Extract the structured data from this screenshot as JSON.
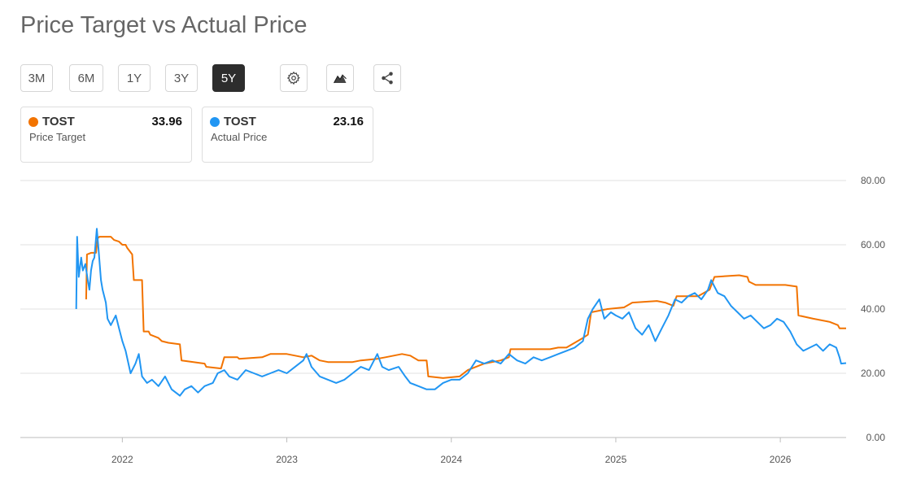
{
  "title": "Price Target vs Actual Price",
  "ranges": [
    {
      "label": "3M",
      "active": false
    },
    {
      "label": "6M",
      "active": false
    },
    {
      "label": "1Y",
      "active": false
    },
    {
      "label": "3Y",
      "active": false
    },
    {
      "label": "5Y",
      "active": true
    }
  ],
  "tools": [
    {
      "name": "settings-button",
      "icon": "gear-icon"
    },
    {
      "name": "chart-type-button",
      "icon": "mountain-chart-icon"
    },
    {
      "name": "share-button",
      "icon": "share-icon"
    }
  ],
  "legend": [
    {
      "ticker": "TOST",
      "value": "33.96",
      "label": "Price Target",
      "color": "#f27300"
    },
    {
      "ticker": "TOST",
      "value": "23.16",
      "label": "Actual Price",
      "color": "#2196f3"
    }
  ],
  "chart_data": {
    "type": "line",
    "title": "Price Target vs Actual Price",
    "xlabel": "",
    "ylabel": "",
    "ylim": [
      0,
      80
    ],
    "y_ticks": [
      "0.00",
      "20.00",
      "40.00",
      "60.00",
      "80.00"
    ],
    "y_tick_values": [
      0,
      20,
      40,
      60,
      80
    ],
    "x_ticks": [
      "2022",
      "2023",
      "2024",
      "2025",
      "2026"
    ],
    "x_tick_values": [
      2022.0,
      2023.0,
      2024.0,
      2025.0,
      2026.0
    ],
    "xlim": [
      2021.38,
      2026.4
    ],
    "grid": "horizontal",
    "axis_position": "right",
    "series": [
      {
        "name": "Price Target",
        "color": "#f27300",
        "points": [
          [
            2021.78,
            43
          ],
          [
            2021.785,
            57
          ],
          [
            2021.81,
            57.5
          ],
          [
            2021.84,
            57.5
          ],
          [
            2021.85,
            62
          ],
          [
            2021.86,
            62.5
          ],
          [
            2021.93,
            62.5
          ],
          [
            2021.95,
            61.5
          ],
          [
            2021.98,
            61
          ],
          [
            2022.0,
            60
          ],
          [
            2022.02,
            60
          ],
          [
            2022.03,
            59
          ],
          [
            2022.06,
            57
          ],
          [
            2022.07,
            49
          ],
          [
            2022.12,
            49
          ],
          [
            2022.13,
            33
          ],
          [
            2022.16,
            33
          ],
          [
            2022.17,
            32
          ],
          [
            2022.22,
            31
          ],
          [
            2022.24,
            30
          ],
          [
            2022.28,
            29.5
          ],
          [
            2022.35,
            29
          ],
          [
            2022.36,
            24
          ],
          [
            2022.5,
            23
          ],
          [
            2022.51,
            22
          ],
          [
            2022.6,
            21.5
          ],
          [
            2022.62,
            25
          ],
          [
            2022.7,
            25
          ],
          [
            2022.71,
            24.5
          ],
          [
            2022.85,
            25
          ],
          [
            2022.9,
            26
          ],
          [
            2023.0,
            26
          ],
          [
            2023.05,
            25.5
          ],
          [
            2023.1,
            25
          ],
          [
            2023.15,
            25.5
          ],
          [
            2023.2,
            24
          ],
          [
            2023.25,
            23.5
          ],
          [
            2023.4,
            23.5
          ],
          [
            2023.45,
            24
          ],
          [
            2023.55,
            24.5
          ],
          [
            2023.6,
            25
          ],
          [
            2023.7,
            26
          ],
          [
            2023.75,
            25.5
          ],
          [
            2023.8,
            24
          ],
          [
            2023.85,
            24
          ],
          [
            2023.86,
            19
          ],
          [
            2023.95,
            18.5
          ],
          [
            2024.05,
            19
          ],
          [
            2024.1,
            21
          ],
          [
            2024.2,
            23
          ],
          [
            2024.3,
            24
          ],
          [
            2024.35,
            25
          ],
          [
            2024.36,
            27.5
          ],
          [
            2024.6,
            27.5
          ],
          [
            2024.65,
            28
          ],
          [
            2024.7,
            28
          ],
          [
            2024.8,
            31
          ],
          [
            2024.83,
            32
          ],
          [
            2024.85,
            39
          ],
          [
            2024.9,
            39.5
          ],
          [
            2024.95,
            40
          ],
          [
            2025.05,
            40.5
          ],
          [
            2025.1,
            42
          ],
          [
            2025.25,
            42.5
          ],
          [
            2025.3,
            42
          ],
          [
            2025.35,
            41
          ],
          [
            2025.37,
            44
          ],
          [
            2025.5,
            44
          ],
          [
            2025.57,
            46
          ],
          [
            2025.6,
            50
          ],
          [
            2025.75,
            50.5
          ],
          [
            2025.8,
            50
          ],
          [
            2025.81,
            48.5
          ],
          [
            2025.85,
            47.5
          ],
          [
            2025.95,
            47.5
          ],
          [
            2026.03,
            47.5
          ],
          [
            2026.1,
            47
          ],
          [
            2026.11,
            38
          ],
          [
            2026.2,
            37
          ],
          [
            2026.3,
            36
          ],
          [
            2026.35,
            35
          ],
          [
            2026.36,
            34
          ],
          [
            2026.4,
            34
          ]
        ]
      },
      {
        "name": "Actual Price",
        "color": "#2196f3",
        "points": [
          [
            2021.72,
            40
          ],
          [
            2021.725,
            62.5
          ],
          [
            2021.735,
            50
          ],
          [
            2021.75,
            56
          ],
          [
            2021.76,
            52
          ],
          [
            2021.775,
            54
          ],
          [
            2021.79,
            49
          ],
          [
            2021.8,
            46
          ],
          [
            2021.81,
            52
          ],
          [
            2021.82,
            55
          ],
          [
            2021.83,
            56
          ],
          [
            2021.845,
            65
          ],
          [
            2021.855,
            59
          ],
          [
            2021.87,
            49
          ],
          [
            2021.88,
            46
          ],
          [
            2021.9,
            42
          ],
          [
            2021.91,
            37
          ],
          [
            2021.93,
            35
          ],
          [
            2021.96,
            38
          ],
          [
            2021.98,
            34
          ],
          [
            2022.0,
            30
          ],
          [
            2022.02,
            27
          ],
          [
            2022.05,
            20
          ],
          [
            2022.08,
            23
          ],
          [
            2022.1,
            26
          ],
          [
            2022.12,
            19
          ],
          [
            2022.15,
            17
          ],
          [
            2022.18,
            18
          ],
          [
            2022.22,
            16
          ],
          [
            2022.26,
            19
          ],
          [
            2022.3,
            15
          ],
          [
            2022.35,
            13
          ],
          [
            2022.38,
            15
          ],
          [
            2022.42,
            16
          ],
          [
            2022.46,
            14
          ],
          [
            2022.5,
            16
          ],
          [
            2022.55,
            17
          ],
          [
            2022.58,
            20
          ],
          [
            2022.62,
            21
          ],
          [
            2022.65,
            19
          ],
          [
            2022.7,
            18
          ],
          [
            2022.75,
            21
          ],
          [
            2022.8,
            20
          ],
          [
            2022.85,
            19
          ],
          [
            2022.9,
            20
          ],
          [
            2022.95,
            21
          ],
          [
            2023.0,
            20
          ],
          [
            2023.05,
            22
          ],
          [
            2023.1,
            24
          ],
          [
            2023.12,
            26
          ],
          [
            2023.15,
            22
          ],
          [
            2023.2,
            19
          ],
          [
            2023.25,
            18
          ],
          [
            2023.3,
            17
          ],
          [
            2023.35,
            18
          ],
          [
            2023.4,
            20
          ],
          [
            2023.45,
            22
          ],
          [
            2023.5,
            21
          ],
          [
            2023.55,
            26
          ],
          [
            2023.58,
            22
          ],
          [
            2023.62,
            21
          ],
          [
            2023.68,
            22
          ],
          [
            2023.72,
            19
          ],
          [
            2023.75,
            17
          ],
          [
            2023.8,
            16
          ],
          [
            2023.85,
            15
          ],
          [
            2023.9,
            15
          ],
          [
            2023.95,
            17
          ],
          [
            2024.0,
            18
          ],
          [
            2024.05,
            18
          ],
          [
            2024.1,
            20
          ],
          [
            2024.15,
            24
          ],
          [
            2024.2,
            23
          ],
          [
            2024.25,
            24
          ],
          [
            2024.3,
            23
          ],
          [
            2024.35,
            26
          ],
          [
            2024.4,
            24
          ],
          [
            2024.45,
            23
          ],
          [
            2024.5,
            25
          ],
          [
            2024.55,
            24
          ],
          [
            2024.6,
            25
          ],
          [
            2024.65,
            26
          ],
          [
            2024.7,
            27
          ],
          [
            2024.75,
            28
          ],
          [
            2024.8,
            30
          ],
          [
            2024.83,
            37
          ],
          [
            2024.86,
            40
          ],
          [
            2024.9,
            43
          ],
          [
            2024.93,
            37
          ],
          [
            2024.97,
            39
          ],
          [
            2025.0,
            38
          ],
          [
            2025.04,
            37
          ],
          [
            2025.08,
            39
          ],
          [
            2025.12,
            34
          ],
          [
            2025.16,
            32
          ],
          [
            2025.2,
            35
          ],
          [
            2025.24,
            30
          ],
          [
            2025.28,
            34
          ],
          [
            2025.32,
            38
          ],
          [
            2025.36,
            43
          ],
          [
            2025.4,
            42
          ],
          [
            2025.44,
            44
          ],
          [
            2025.48,
            45
          ],
          [
            2025.52,
            43
          ],
          [
            2025.56,
            46
          ],
          [
            2025.58,
            49
          ],
          [
            2025.6,
            47
          ],
          [
            2025.62,
            45
          ],
          [
            2025.66,
            44
          ],
          [
            2025.7,
            41
          ],
          [
            2025.74,
            39
          ],
          [
            2025.78,
            37
          ],
          [
            2025.82,
            38
          ],
          [
            2025.86,
            36
          ],
          [
            2025.9,
            34
          ],
          [
            2025.94,
            35
          ],
          [
            2025.98,
            37
          ],
          [
            2026.02,
            36
          ],
          [
            2026.06,
            33
          ],
          [
            2026.1,
            29
          ],
          [
            2026.14,
            27
          ],
          [
            2026.18,
            28
          ],
          [
            2026.22,
            29
          ],
          [
            2026.26,
            27
          ],
          [
            2026.3,
            29
          ],
          [
            2026.34,
            28
          ],
          [
            2026.36,
            25
          ],
          [
            2026.37,
            23
          ],
          [
            2026.4,
            23.16
          ]
        ]
      }
    ]
  }
}
